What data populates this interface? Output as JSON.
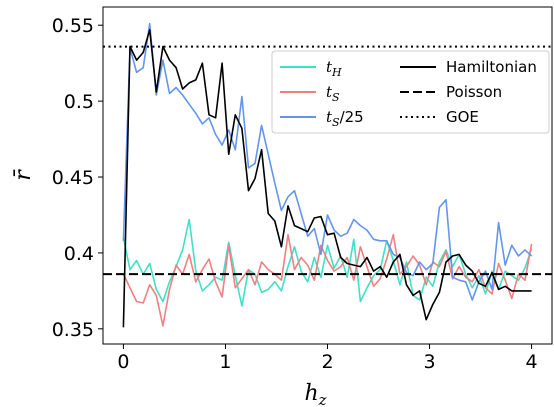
{
  "chart_data": {
    "type": "line",
    "xlabel": "h_z",
    "ylabel": "r̄",
    "xlim": [
      -0.2,
      4.2
    ],
    "ylim": [
      0.34,
      0.562
    ],
    "xticks": [
      0,
      1,
      2,
      3,
      4
    ],
    "yticks": [
      0.35,
      0.4,
      0.45,
      0.5,
      0.55
    ],
    "ytick_labels": [
      "0.35",
      "0.4",
      "0.45",
      "0.5",
      "0.55"
    ],
    "x": [
      0.0,
      0.0645,
      0.129,
      0.1935,
      0.258,
      0.3225,
      0.387,
      0.4515,
      0.516,
      0.5805,
      0.645,
      0.7095,
      0.774,
      0.8385,
      0.903,
      0.9675,
      1.032,
      1.0965,
      1.161,
      1.2255,
      1.29,
      1.3545,
      1.419,
      1.4835,
      1.548,
      1.6125,
      1.677,
      1.7415,
      1.806,
      1.8705,
      1.935,
      2.0,
      2.0645,
      2.129,
      2.1935,
      2.258,
      2.3225,
      2.387,
      2.4515,
      2.516,
      2.5805,
      2.645,
      2.7095,
      2.774,
      2.8385,
      2.903,
      2.9675,
      3.032,
      3.0965,
      3.161,
      3.2255,
      3.29,
      3.3545,
      3.419,
      3.4835,
      3.548,
      3.6125,
      3.677,
      3.7415,
      3.806,
      3.8705,
      3.935,
      4.0
    ],
    "series": [
      {
        "name": "t_H",
        "color": "#40e0c8",
        "style": "solid",
        "values": [
          0.41,
          0.389,
          0.395,
          0.386,
          0.393,
          0.376,
          0.368,
          0.381,
          0.391,
          0.402,
          0.422,
          0.388,
          0.375,
          0.379,
          0.384,
          0.382,
          0.407,
          0.385,
          0.365,
          0.389,
          0.386,
          0.374,
          0.376,
          0.381,
          0.375,
          0.391,
          0.404,
          0.388,
          0.381,
          0.397,
          0.384,
          0.405,
          0.39,
          0.398,
          0.384,
          0.409,
          0.368,
          0.377,
          0.385,
          0.389,
          0.408,
          0.395,
          0.379,
          0.394,
          0.372,
          0.369,
          0.384,
          0.378,
          0.394,
          0.402,
          0.391,
          0.399,
          0.386,
          0.377,
          0.385,
          0.373,
          0.388,
          0.376,
          0.388,
          0.385,
          0.382,
          0.39,
          0.403
        ]
      },
      {
        "name": "t_S",
        "color": "#f08080",
        "style": "solid",
        "values": [
          0.386,
          0.377,
          0.368,
          0.367,
          0.379,
          0.372,
          0.352,
          0.376,
          0.392,
          0.386,
          0.399,
          0.381,
          0.389,
          0.396,
          0.381,
          0.371,
          0.405,
          0.377,
          0.383,
          0.389,
          0.379,
          0.394,
          0.389,
          0.386,
          0.382,
          0.412,
          0.389,
          0.397,
          0.392,
          0.382,
          0.405,
          0.395,
          0.388,
          0.391,
          0.397,
          0.382,
          0.404,
          0.391,
          0.378,
          0.383,
          0.396,
          0.412,
          0.386,
          0.391,
          0.398,
          0.392,
          0.379,
          0.394,
          0.391,
          0.401,
          0.383,
          0.391,
          0.384,
          0.381,
          0.389,
          0.377,
          0.373,
          0.393,
          0.382,
          0.37,
          0.386,
          0.382,
          0.406
        ]
      },
      {
        "name": "t_S/25",
        "color": "#6495ed",
        "style": "solid",
        "values": [
          0.408,
          0.535,
          0.519,
          0.522,
          0.551,
          0.504,
          0.527,
          0.505,
          0.509,
          0.504,
          0.498,
          0.492,
          0.485,
          0.489,
          0.478,
          0.471,
          0.481,
          0.468,
          0.503,
          0.456,
          0.459,
          0.484,
          0.465,
          0.446,
          0.428,
          0.437,
          0.441,
          0.426,
          0.411,
          0.416,
          0.399,
          0.425,
          0.415,
          0.411,
          0.413,
          0.422,
          0.418,
          0.415,
          0.409,
          0.408,
          0.408,
          0.399,
          0.397,
          0.387,
          0.385,
          0.394,
          0.389,
          0.393,
          0.43,
          0.435,
          0.384,
          0.382,
          0.381,
          0.369,
          0.381,
          0.388,
          0.376,
          0.42,
          0.392,
          0.405,
          0.398,
          0.402,
          0.398
        ]
      },
      {
        "name": "Hamiltonian",
        "color": "#000000",
        "style": "solid",
        "values": [
          0.351,
          0.536,
          0.527,
          0.532,
          0.547,
          0.506,
          0.536,
          0.527,
          0.522,
          0.508,
          0.512,
          0.514,
          0.525,
          0.491,
          0.489,
          0.525,
          0.465,
          0.491,
          0.482,
          0.441,
          0.449,
          0.468,
          0.426,
          0.421,
          0.404,
          0.431,
          0.418,
          0.416,
          0.414,
          0.423,
          0.424,
          0.412,
          0.413,
          0.397,
          0.393,
          0.392,
          0.391,
          0.397,
          0.388,
          0.391,
          0.384,
          0.394,
          0.399,
          0.379,
          0.372,
          0.375,
          0.356,
          0.366,
          0.374,
          0.394,
          0.398,
          0.399,
          0.392,
          0.388,
          0.38,
          0.378,
          0.387,
          0.376,
          0.378,
          0.375,
          0.375,
          0.375,
          0.375
        ]
      }
    ],
    "poisson": 0.386,
    "goe": 0.5359,
    "legend": {
      "placement": "top-right",
      "items": [
        {
          "key": "t_H",
          "label_main": "t",
          "label_sub": "H",
          "label_suffix": "",
          "color": "#40e0c8",
          "dash": "solid"
        },
        {
          "key": "t_S",
          "label_main": "t",
          "label_sub": "S",
          "label_suffix": "",
          "color": "#f08080",
          "dash": "solid"
        },
        {
          "key": "t_S/25",
          "label_main": "t",
          "label_sub": "S",
          "label_suffix": "/25",
          "color": "#6495ed",
          "dash": "solid"
        },
        {
          "key": "Hamiltonian",
          "label_main": "Hamiltonian",
          "label_sub": "",
          "label_suffix": "",
          "color": "#000000",
          "dash": "solid"
        },
        {
          "key": "Poisson",
          "label_main": "Poisson",
          "label_sub": "",
          "label_suffix": "",
          "color": "#000000",
          "dash": "dashed"
        },
        {
          "key": "GOE",
          "label_main": "GOE",
          "label_sub": "",
          "label_suffix": "",
          "color": "#000000",
          "dash": "dotted"
        }
      ]
    }
  }
}
